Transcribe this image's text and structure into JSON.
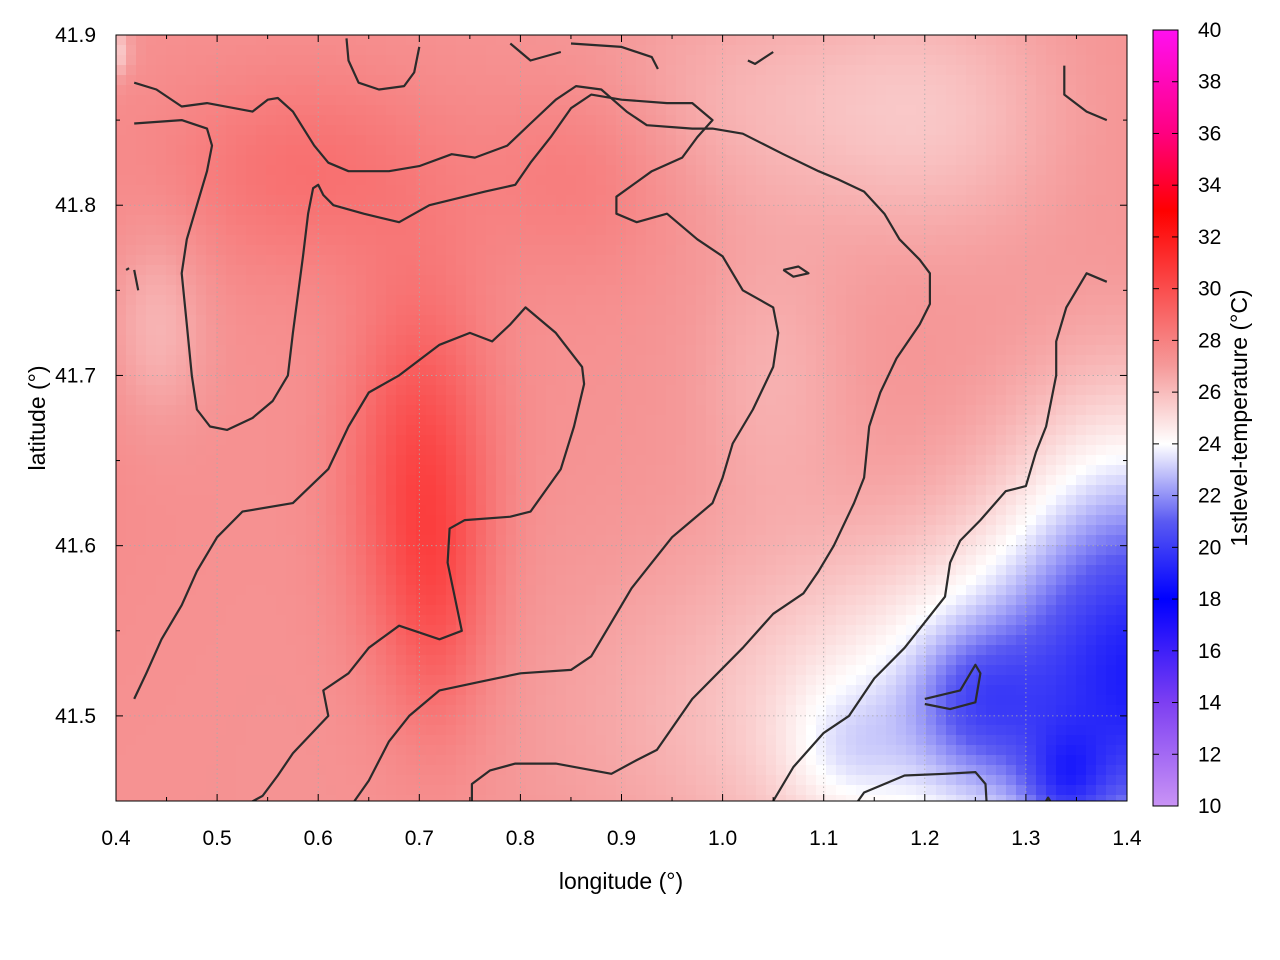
{
  "chart_data": {
    "type": "heatmap",
    "title": "",
    "xlabel": "longitude (°)",
    "ylabel": "latitude (°)",
    "xlim": [
      0.4,
      1.4
    ],
    "ylim": [
      41.45,
      41.9
    ],
    "x_ticks": [
      "0.4",
      "0.5",
      "0.6",
      "0.7",
      "0.8",
      "0.9",
      "1.0",
      "1.1",
      "1.2",
      "1.3",
      "1.4"
    ],
    "y_ticks": [
      "41.5",
      "41.6",
      "41.7",
      "41.8",
      "41.9"
    ],
    "grid": true,
    "colorbar": {
      "label": "1stlevel-temperature (°C)",
      "range": [
        10,
        40
      ],
      "ticks": [
        "10",
        "12",
        "14",
        "16",
        "18",
        "20",
        "22",
        "24",
        "26",
        "28",
        "30",
        "32",
        "34",
        "36",
        "38",
        "40"
      ],
      "stops": [
        {
          "value": 10,
          "color": "#c993f5"
        },
        {
          "value": 14,
          "color": "#7d3ff2"
        },
        {
          "value": 18,
          "color": "#0000ff"
        },
        {
          "value": 21,
          "color": "#5a5af2"
        },
        {
          "value": 24,
          "color": "#ffffff"
        },
        {
          "value": 27,
          "color": "#f59a9a"
        },
        {
          "value": 33,
          "color": "#ff0000"
        },
        {
          "value": 36,
          "color": "#ff0080"
        },
        {
          "value": 40,
          "color": "#ff10f0"
        }
      ]
    },
    "temperature_field": {
      "base": 27.3,
      "features": [
        {
          "lon": 0.7,
          "lat": 41.64,
          "dlon": 0.07,
          "dlat": 0.11,
          "amp": 2.8
        },
        {
          "lon": 0.72,
          "lat": 41.56,
          "dlon": 0.05,
          "dlat": 0.08,
          "amp": 1.2
        },
        {
          "lon": 0.59,
          "lat": 41.82,
          "dlon": 0.14,
          "dlat": 0.06,
          "amp": 1.3
        },
        {
          "lon": 0.86,
          "lat": 41.82,
          "dlon": 0.1,
          "dlat": 0.06,
          "amp": 1.0
        },
        {
          "lon": 0.28,
          "lat": 41.7,
          "dlon": 0.18,
          "dlat": 0.15,
          "amp": 0.5
        },
        {
          "lon": 0.44,
          "lat": 41.73,
          "dlon": 0.05,
          "dlat": 0.06,
          "amp": -1.3
        },
        {
          "lon": 1.06,
          "lat": 41.86,
          "dlon": 0.2,
          "dlat": 0.07,
          "amp": -1.1
        },
        {
          "lon": 1.22,
          "lat": 41.85,
          "dlon": 0.12,
          "dlat": 0.08,
          "amp": -1.0
        },
        {
          "lon": 1.05,
          "lat": 41.7,
          "dlon": 0.08,
          "dlat": 0.08,
          "amp": -0.9
        },
        {
          "lon": 1.5,
          "lat": 41.5,
          "dlon": 0.4,
          "dlat": 0.1,
          "amp": -7.2
        },
        {
          "lon": 1.4,
          "lat": 41.6,
          "dlon": 0.12,
          "dlat": 0.1,
          "amp": -3.5
        },
        {
          "lon": 1.25,
          "lat": 41.51,
          "dlon": 0.06,
          "dlat": 0.04,
          "amp": -2.0
        },
        {
          "lon": 1.34,
          "lat": 41.46,
          "dlon": 0.04,
          "dlat": 0.03,
          "amp": -2.5
        },
        {
          "lon": 1.12,
          "lat": 41.48,
          "dlon": 0.06,
          "dlat": 0.04,
          "amp": -1.2
        },
        {
          "lon": 0.39,
          "lat": 41.89,
          "dlon": 0.02,
          "dlat": 0.015,
          "amp": -3.0
        }
      ]
    },
    "contours": [
      [
        [
          0.418,
          41.872
        ],
        [
          0.44,
          41.868
        ],
        [
          0.465,
          41.858
        ],
        [
          0.49,
          41.86
        ],
        [
          0.535,
          41.855
        ],
        [
          0.55,
          41.862
        ],
        [
          0.56,
          41.863
        ],
        [
          0.575,
          41.855
        ],
        [
          0.596,
          41.835
        ],
        [
          0.61,
          41.825
        ],
        [
          0.63,
          41.82
        ],
        [
          0.67,
          41.82
        ],
        [
          0.7,
          41.823
        ],
        [
          0.732,
          41.83
        ],
        [
          0.755,
          41.828
        ],
        [
          0.787,
          41.835
        ],
        [
          0.81,
          41.848
        ],
        [
          0.835,
          41.862
        ],
        [
          0.855,
          41.87
        ],
        [
          0.88,
          41.868
        ],
        [
          0.905,
          41.855
        ],
        [
          0.925,
          41.847
        ],
        [
          0.97,
          41.845
        ],
        [
          0.99,
          41.845
        ],
        [
          1.02,
          41.842
        ],
        [
          1.06,
          41.83
        ],
        [
          1.095,
          41.82
        ],
        [
          1.115,
          41.815
        ],
        [
          1.14,
          41.808
        ],
        [
          1.16,
          41.795
        ],
        [
          1.175,
          41.78
        ],
        [
          1.195,
          41.768
        ],
        [
          1.205,
          41.76
        ],
        [
          1.205,
          41.742
        ],
        [
          1.195,
          41.73
        ],
        [
          1.172,
          41.71
        ],
        [
          1.156,
          41.69
        ],
        [
          1.145,
          41.67
        ],
        [
          1.14,
          41.64
        ],
        [
          1.13,
          41.625
        ],
        [
          1.11,
          41.6
        ],
        [
          1.095,
          41.585
        ],
        [
          1.08,
          41.572
        ],
        [
          1.05,
          41.56
        ],
        [
          1.02,
          41.54
        ],
        [
          0.97,
          41.51
        ],
        [
          0.935,
          41.48
        ],
        [
          0.915,
          41.474
        ],
        [
          0.89,
          41.466
        ],
        [
          0.835,
          41.472
        ],
        [
          0.795,
          41.472
        ],
        [
          0.77,
          41.468
        ],
        [
          0.752,
          41.46
        ],
        [
          0.752,
          41.443
        ]
      ],
      [
        [
          0.52,
          41.445
        ],
        [
          0.545,
          41.453
        ],
        [
          0.56,
          41.465
        ],
        [
          0.575,
          41.478
        ],
        [
          0.61,
          41.5
        ],
        [
          0.61,
          41.5
        ],
        [
          0.605,
          41.515
        ],
        [
          0.63,
          41.525
        ],
        [
          0.65,
          41.54
        ],
        [
          0.68,
          41.553
        ],
        [
          0.72,
          41.545
        ],
        [
          0.742,
          41.55
        ],
        [
          0.735,
          41.57
        ],
        [
          0.728,
          41.59
        ],
        [
          0.73,
          41.61
        ],
        [
          0.745,
          41.615
        ],
        [
          0.79,
          41.617
        ],
        [
          0.81,
          41.62
        ],
        [
          0.84,
          41.645
        ],
        [
          0.853,
          41.67
        ],
        [
          0.863,
          41.695
        ],
        [
          0.861,
          41.705
        ],
        [
          0.835,
          41.725
        ],
        [
          0.805,
          41.74
        ],
        [
          0.79,
          41.73
        ],
        [
          0.772,
          41.72
        ],
        [
          0.75,
          41.725
        ],
        [
          0.72,
          41.718
        ],
        [
          0.68,
          41.7
        ],
        [
          0.65,
          41.69
        ],
        [
          0.63,
          41.67
        ],
        [
          0.61,
          41.645
        ],
        [
          0.575,
          41.625
        ],
        [
          0.525,
          41.62
        ],
        [
          0.5,
          41.605
        ],
        [
          0.48,
          41.585
        ],
        [
          0.465,
          41.565
        ],
        [
          0.445,
          41.545
        ],
        [
          0.43,
          41.525
        ],
        [
          0.418,
          41.51
        ]
      ],
      [
        [
          0.63,
          41.445
        ],
        [
          0.65,
          41.462
        ],
        [
          0.67,
          41.485
        ],
        [
          0.69,
          41.5
        ],
        [
          0.72,
          41.515
        ],
        [
          0.76,
          41.52
        ],
        [
          0.8,
          41.525
        ],
        [
          0.85,
          41.527
        ],
        [
          0.87,
          41.535
        ],
        [
          0.89,
          41.555
        ],
        [
          0.91,
          41.575
        ],
        [
          0.93,
          41.59
        ],
        [
          0.95,
          41.605
        ],
        [
          0.97,
          41.615
        ],
        [
          0.99,
          41.625
        ],
        [
          1.0,
          41.64
        ],
        [
          1.01,
          41.66
        ],
        [
          1.03,
          41.68
        ],
        [
          1.05,
          41.705
        ],
        [
          1.055,
          41.725
        ],
        [
          1.05,
          41.74
        ],
        [
          1.02,
          41.75
        ],
        [
          1.0,
          41.77
        ],
        [
          0.975,
          41.78
        ],
        [
          0.945,
          41.795
        ],
        [
          0.915,
          41.79
        ],
        [
          0.895,
          41.795
        ],
        [
          0.895,
          41.805
        ],
        [
          0.93,
          41.82
        ],
        [
          0.96,
          41.828
        ],
        [
          0.975,
          41.84
        ],
        [
          0.99,
          41.85
        ],
        [
          0.97,
          41.86
        ],
        [
          0.945,
          41.86
        ],
        [
          0.9,
          41.862
        ],
        [
          0.87,
          41.865
        ],
        [
          0.85,
          41.857
        ],
        [
          0.83,
          41.84
        ],
        [
          0.81,
          41.825
        ],
        [
          0.795,
          41.812
        ],
        [
          0.765,
          41.808
        ],
        [
          0.71,
          41.8
        ],
        [
          0.68,
          41.79
        ],
        [
          0.645,
          41.795
        ],
        [
          0.615,
          41.8
        ],
        [
          0.605,
          41.806
        ],
        [
          0.6,
          41.812
        ],
        [
          0.595,
          41.81
        ],
        [
          0.59,
          41.795
        ],
        [
          0.585,
          41.77
        ],
        [
          0.575,
          41.725
        ],
        [
          0.57,
          41.7
        ],
        [
          0.555,
          41.685
        ],
        [
          0.535,
          41.675
        ],
        [
          0.51,
          41.668
        ],
        [
          0.493,
          41.67
        ],
        [
          0.48,
          41.68
        ],
        [
          0.475,
          41.7
        ],
        [
          0.47,
          41.73
        ],
        [
          0.465,
          41.76
        ],
        [
          0.47,
          41.78
        ],
        [
          0.48,
          41.8
        ],
        [
          0.49,
          41.82
        ],
        [
          0.495,
          41.835
        ],
        [
          0.49,
          41.845
        ],
        [
          0.465,
          41.85
        ],
        [
          0.418,
          41.848
        ]
      ],
      [
        [
          0.418,
          41.762
        ],
        [
          0.422,
          41.75
        ]
      ],
      [
        [
          0.413,
          41.763
        ],
        [
          0.41,
          41.762
        ]
      ],
      [
        [
          1.06,
          41.762
        ],
        [
          1.07,
          41.758
        ],
        [
          1.085,
          41.76
        ],
        [
          1.075,
          41.764
        ],
        [
          1.06,
          41.762
        ]
      ],
      [
        [
          1.025,
          41.885
        ],
        [
          1.032,
          41.883
        ],
        [
          1.05,
          41.89
        ]
      ],
      [
        [
          0.85,
          41.895
        ],
        [
          0.9,
          41.893
        ],
        [
          0.93,
          41.887
        ],
        [
          0.936,
          41.88
        ]
      ],
      [
        [
          0.79,
          41.895
        ],
        [
          0.81,
          41.885
        ],
        [
          0.84,
          41.89
        ]
      ],
      [
        [
          0.628,
          41.898
        ],
        [
          0.63,
          41.885
        ],
        [
          0.64,
          41.872
        ],
        [
          0.66,
          41.868
        ],
        [
          0.685,
          41.87
        ],
        [
          0.695,
          41.878
        ],
        [
          0.7,
          41.893
        ]
      ],
      [
        [
          1.338,
          41.882
        ],
        [
          1.338,
          41.865
        ],
        [
          1.36,
          41.855
        ],
        [
          1.38,
          41.85
        ]
      ],
      [
        [
          1.38,
          41.755
        ],
        [
          1.36,
          41.76
        ],
        [
          1.34,
          41.74
        ],
        [
          1.33,
          41.72
        ],
        [
          1.33,
          41.7
        ],
        [
          1.32,
          41.67
        ],
        [
          1.31,
          41.655
        ],
        [
          1.3,
          41.635
        ],
        [
          1.28,
          41.632
        ],
        [
          1.255,
          41.615
        ],
        [
          1.235,
          41.603
        ],
        [
          1.225,
          41.59
        ],
        [
          1.22,
          41.57
        ],
        [
          1.2,
          41.555
        ],
        [
          1.18,
          41.54
        ],
        [
          1.15,
          41.522
        ],
        [
          1.125,
          41.5
        ],
        [
          1.1,
          41.49
        ],
        [
          1.07,
          41.47
        ],
        [
          1.05,
          41.45
        ],
        [
          1.04,
          41.435
        ]
      ],
      [
        [
          1.11,
          41.43
        ],
        [
          1.14,
          41.455
        ],
        [
          1.16,
          41.46
        ],
        [
          1.18,
          41.465
        ],
        [
          1.22,
          41.466
        ],
        [
          1.25,
          41.467
        ],
        [
          1.26,
          41.46
        ],
        [
          1.262,
          41.44
        ]
      ],
      [
        [
          1.2,
          41.507
        ],
        [
          1.225,
          41.504
        ],
        [
          1.25,
          41.508
        ],
        [
          1.255,
          41.525
        ],
        [
          1.25,
          41.53
        ],
        [
          1.235,
          41.515
        ],
        [
          1.2,
          41.51
        ]
      ],
      [
        [
          1.318,
          41.448
        ],
        [
          1.322,
          41.452
        ],
        [
          1.326,
          41.448
        ]
      ]
    ]
  }
}
